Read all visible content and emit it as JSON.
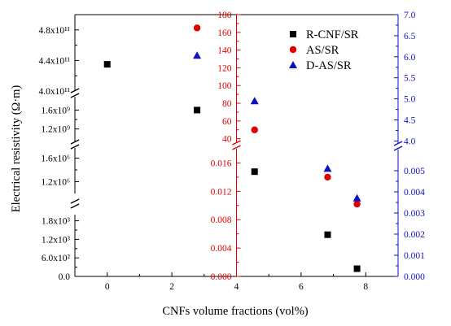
{
  "chart_data": {
    "type": "scatter",
    "xlabel": "CNFs volume fractions (vol%)",
    "ylabel": "Electrical resistivity (Ω·m)",
    "xlim": [
      -1,
      9
    ],
    "x_ticks": [
      "0",
      "2",
      "4",
      "6",
      "8"
    ],
    "left_axis": {
      "color": "#000000",
      "segments": [
        {
          "range": [
            0,
            2000
          ],
          "ticks": [
            "0.0",
            "6.0x10²",
            "1.2x10³",
            "1.8x10³"
          ],
          "tick_values": [
            0,
            600,
            1200,
            1800
          ]
        },
        {
          "range": [
            1000000,
            1800000
          ],
          "ticks": [
            "1.2x10⁶",
            "1.6x10⁶"
          ],
          "tick_values": [
            1200000,
            1600000
          ]
        },
        {
          "range": [
            900000000,
            1900000000
          ],
          "ticks": [
            "1.2x10⁹",
            "1.6x10⁹"
          ],
          "tick_values": [
            1200000000,
            1600000000
          ]
        },
        {
          "range": [
            400000000000,
            500000000000
          ],
          "ticks": [
            "4.0x10¹¹",
            "4.4x10¹¹",
            "4.8x10¹¹"
          ],
          "tick_values": [
            400000000000,
            440000000000,
            480000000000
          ]
        }
      ]
    },
    "middle_axis": {
      "color": "#e00000",
      "position_x": 4,
      "segments": [
        {
          "range": [
            0,
            0.018
          ],
          "ticks": [
            "0.000",
            "0.004",
            "0.008",
            "0.012",
            "0.016"
          ],
          "tick_values": [
            0,
            0.004,
            0.008,
            0.012,
            0.016
          ]
        },
        {
          "range": [
            36,
            180
          ],
          "ticks": [
            "40",
            "60",
            "80",
            "100",
            "120",
            "140",
            "160",
            "180"
          ],
          "tick_values": [
            40,
            60,
            80,
            100,
            120,
            140,
            160,
            180
          ]
        }
      ]
    },
    "right_axis": {
      "color": "#1010c0",
      "segments": [
        {
          "range": [
            0,
            0.006
          ],
          "ticks": [
            "0.000",
            "0.001",
            "0.002",
            "0.003",
            "0.004",
            "0.005"
          ],
          "tick_values": [
            0,
            0.001,
            0.002,
            0.003,
            0.004,
            0.005
          ]
        },
        {
          "range": [
            3.95,
            7.0
          ],
          "ticks": [
            "4.0",
            "4.5",
            "5.0",
            "5.5",
            "6.0",
            "6.5",
            "7.0"
          ],
          "tick_values": [
            4.0,
            4.5,
            5.0,
            5.5,
            6.0,
            6.5,
            7.0
          ]
        }
      ]
    },
    "series": [
      {
        "name": "R-CNF/SR",
        "marker": "square",
        "color": "#000000",
        "axis": "left",
        "points": [
          {
            "x": 0,
            "y": 435000000000
          },
          {
            "x": 2.78,
            "y": 1600000000
          },
          {
            "x": 4.56,
            "y": 1370000
          },
          {
            "x": 6.82,
            "y": 1350
          },
          {
            "x": 7.73,
            "y": 250
          }
        ]
      },
      {
        "name": "AS/SR",
        "marker": "circle",
        "color": "#e00000",
        "axis": "middle",
        "points": [
          {
            "x": 2.78,
            "y": 165
          },
          {
            "x": 4.56,
            "y": 50
          },
          {
            "x": 6.82,
            "y": 0.014
          },
          {
            "x": 7.73,
            "y": 0.0102
          }
        ]
      },
      {
        "name": "D-AS/SR",
        "marker": "triangle",
        "color": "#1010c0",
        "axis": "right",
        "points": [
          {
            "x": 2.78,
            "y": 6.03
          },
          {
            "x": 4.56,
            "y": 4.95
          },
          {
            "x": 6.82,
            "y": 0.0051
          },
          {
            "x": 7.73,
            "y": 0.0037
          }
        ]
      }
    ],
    "legend_position": "top-right",
    "grid": false
  }
}
